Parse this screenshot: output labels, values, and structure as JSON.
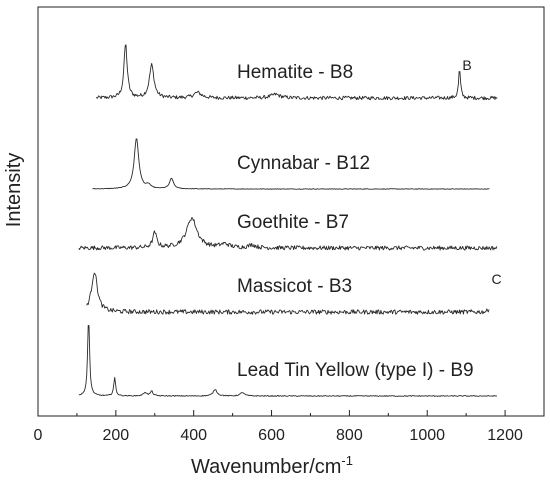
{
  "chart_data": {
    "type": "line",
    "xlabel": "Wavenumber/cm",
    "xlabel_sup": "-1",
    "ylabel": "Intensity",
    "xlim": [
      0,
      1300
    ],
    "x_ticks": [
      0,
      200,
      400,
      600,
      800,
      1000,
      1200
    ],
    "y_tick_labels": "none",
    "grid": false,
    "legend": "none",
    "series": [
      {
        "name": "Hematite - B8",
        "x_range": [
          150,
          1180
        ],
        "noise": 0.6,
        "baseline": 0.0,
        "peaks": [
          {
            "x": 225,
            "height": 18.0,
            "width": 5
          },
          {
            "x": 292,
            "height": 11.0,
            "width": 7
          },
          {
            "x": 410,
            "height": 1.8,
            "width": 12
          },
          {
            "x": 610,
            "height": 1.2,
            "width": 14
          },
          {
            "x": 1083,
            "height": 9.5,
            "width": 3
          }
        ],
        "annotation": {
          "text": "B",
          "x": 1085
        }
      },
      {
        "name": "Cynnabar - B12",
        "x_range": [
          140,
          1160
        ],
        "noise": 0.1,
        "baseline": 0.0,
        "peaks": [
          {
            "x": 253,
            "height": 17.0,
            "width": 7
          },
          {
            "x": 284,
            "height": 1.2,
            "width": 6
          },
          {
            "x": 343,
            "height": 3.5,
            "width": 6
          }
        ]
      },
      {
        "name": "Goethite - B7",
        "x_range": [
          105,
          1180
        ],
        "noise": 0.7,
        "baseline": 0.0,
        "peaks": [
          {
            "x": 300,
            "height": 5.0,
            "width": 6
          },
          {
            "x": 395,
            "height": 10.0,
            "width": 16
          },
          {
            "x": 480,
            "height": 1.2,
            "width": 14
          },
          {
            "x": 550,
            "height": 1.0,
            "width": 10
          }
        ]
      },
      {
        "name": "Massicot - B3",
        "x_range": [
          125,
          1160
        ],
        "noise": 0.75,
        "baseline": 0.0,
        "peaks": [
          {
            "x": 145,
            "height": 13.5,
            "width": 9
          },
          {
            "x": 1163,
            "height": 7.5,
            "width": 2
          }
        ],
        "annotation": {
          "text": "C",
          "x": 1160
        }
      },
      {
        "name": "Lead Tin Yellow (type I) - B9",
        "x_range": [
          105,
          1180
        ],
        "noise": 0.15,
        "baseline": 0.0,
        "peaks": [
          {
            "x": 130,
            "height": 26.0,
            "width": 3
          },
          {
            "x": 197,
            "height": 6.0,
            "width": 3
          },
          {
            "x": 275,
            "height": 1.2,
            "width": 5
          },
          {
            "x": 292,
            "height": 1.6,
            "width": 4
          },
          {
            "x": 455,
            "height": 2.2,
            "width": 6
          },
          {
            "x": 525,
            "height": 1.2,
            "width": 6
          }
        ]
      }
    ]
  }
}
